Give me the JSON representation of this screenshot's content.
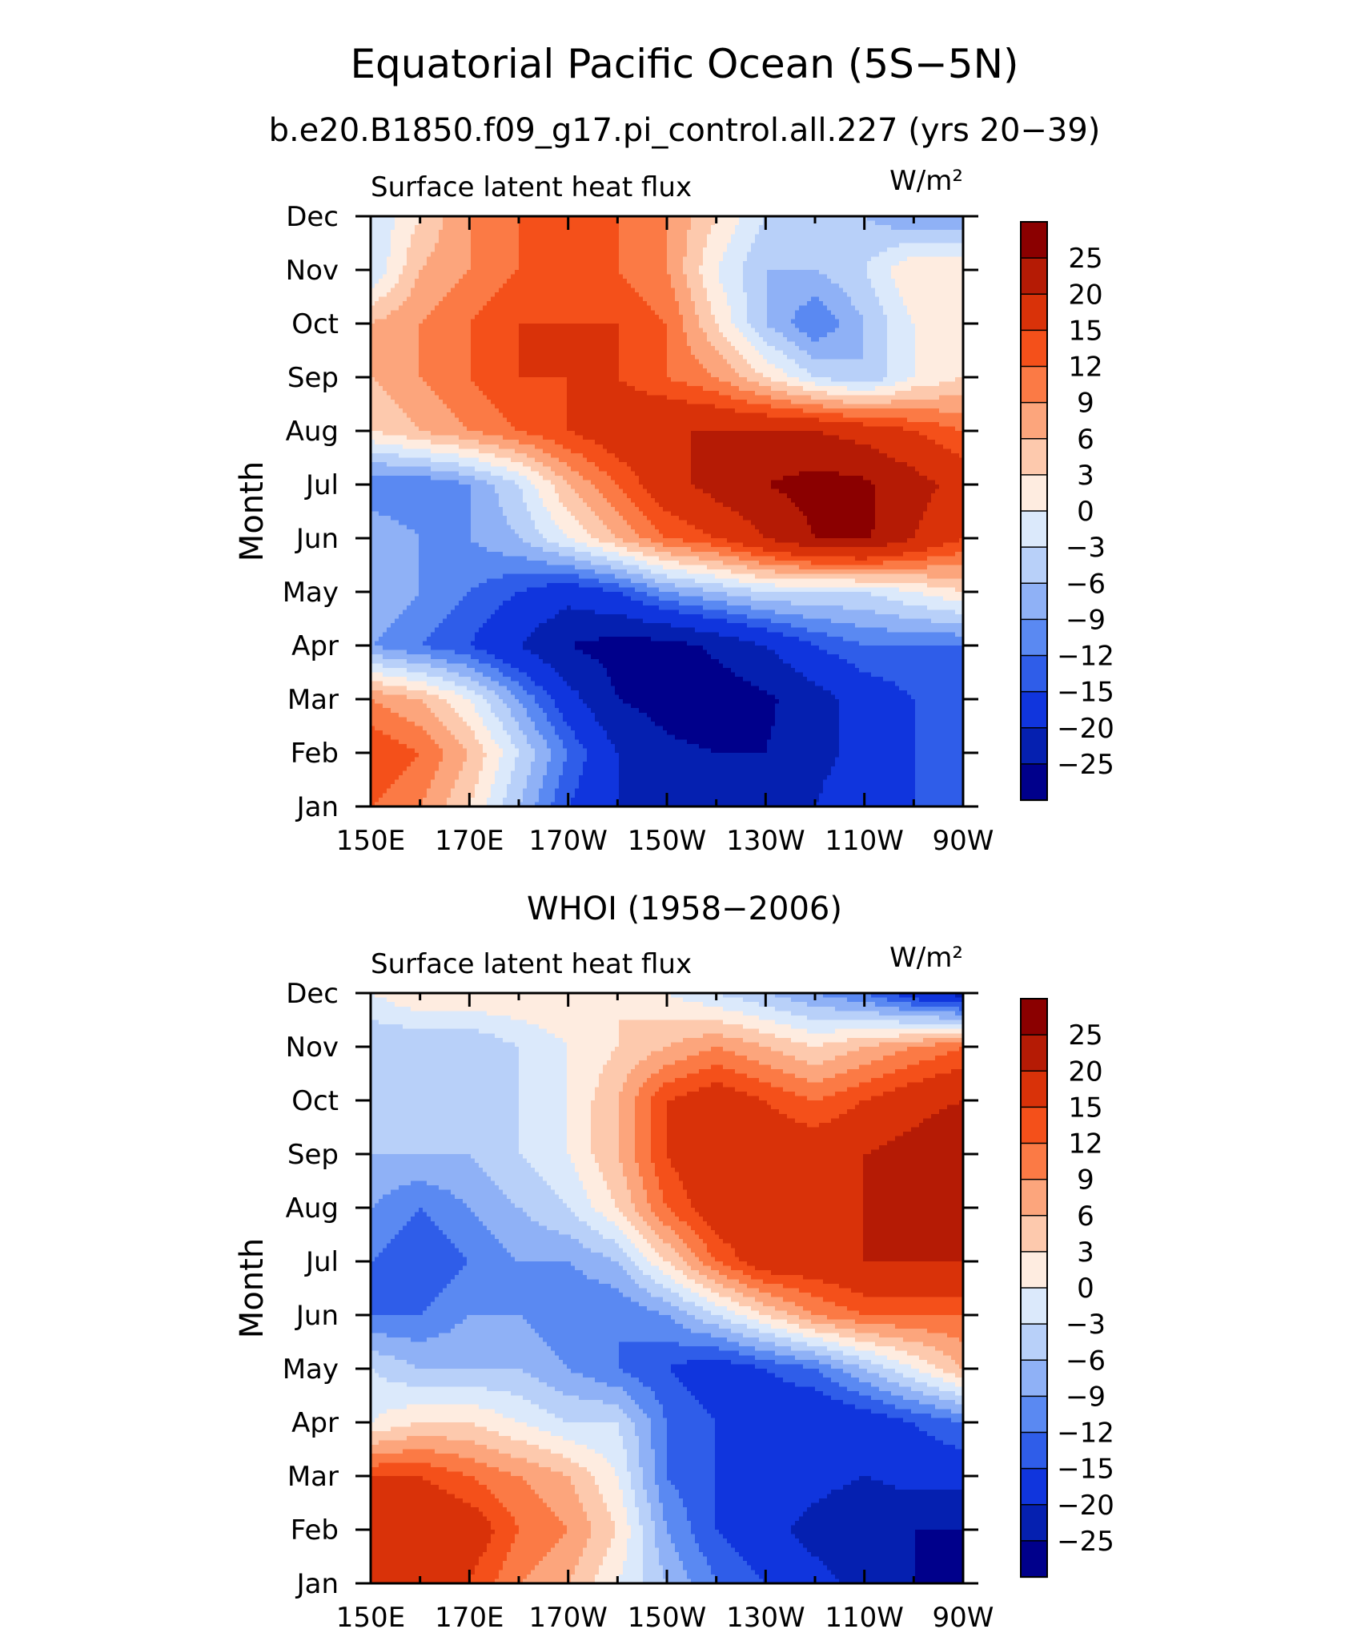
{
  "figure": {
    "title": "Equatorial Pacific Ocean (5S−5N)",
    "subtitle": "b.e20.B1850.f09_g17.pi_control.all.227 (yrs 20−39)",
    "panel2_title": "WHOI (1958−2006)"
  },
  "colorbar": {
    "labels": [
      "25",
      "20",
      "15",
      "12",
      "9",
      "6",
      "3",
      "0",
      "−3",
      "−6",
      "−9",
      "−12",
      "−15",
      "−20",
      "−25"
    ],
    "colors": [
      "#8b0000",
      "#b51b05",
      "#d93209",
      "#f4501a",
      "#fb7a45",
      "#fca57c",
      "#fdc9ad",
      "#feece0",
      "#dbe9fb",
      "#b8d0f9",
      "#8fb1f6",
      "#5a89f2",
      "#2f5de9",
      "#1035dd",
      "#0520b0",
      "#00008b"
    ]
  },
  "chart_data": [
    {
      "type": "heatmap",
      "title": "Surface latent heat flux",
      "units_label": "W/m²",
      "ylabel": "Month",
      "x_tick_labels": [
        "150E",
        "170E",
        "170W",
        "150W",
        "130W",
        "110W",
        "90W"
      ],
      "y_tick_labels": [
        "Jan",
        "Feb",
        "Mar",
        "Apr",
        "May",
        "Jun",
        "Jul",
        "Aug",
        "Sep",
        "Oct",
        "Nov",
        "Dec"
      ],
      "x_lon": [
        150,
        160,
        170,
        180,
        190,
        200,
        210,
        220,
        230,
        240,
        250,
        260,
        270
      ],
      "values": [
        [
          12,
          9,
          3,
          -6,
          -15,
          -20,
          -22,
          -22,
          -22,
          -20,
          -15,
          -15,
          -15
        ],
        [
          15,
          12,
          6,
          -3,
          -12,
          -20,
          -24,
          -25,
          -25,
          -22,
          -18,
          -15,
          -15
        ],
        [
          9,
          6,
          0,
          -9,
          -18,
          -25,
          -27,
          -28,
          -26,
          -22,
          -18,
          -15,
          -15
        ],
        [
          -9,
          -12,
          -15,
          -20,
          -25,
          -27,
          -27,
          -24,
          -20,
          -15,
          -12,
          -12,
          -12
        ],
        [
          -6,
          -9,
          -12,
          -15,
          -18,
          -15,
          -9,
          -6,
          -3,
          -3,
          -3,
          0,
          3
        ],
        [
          -6,
          -9,
          -9,
          -6,
          0,
          6,
          12,
          15,
          20,
          25,
          26,
          20,
          15
        ],
        [
          -12,
          -12,
          -9,
          -3,
          6,
          12,
          18,
          22,
          25,
          27,
          26,
          22,
          18
        ],
        [
          3,
          6,
          9,
          12,
          15,
          18,
          20,
          20,
          20,
          20,
          18,
          15,
          12
        ],
        [
          6,
          9,
          12,
          15,
          15,
          15,
          12,
          9,
          3,
          -3,
          -6,
          0,
          3
        ],
        [
          6,
          9,
          12,
          15,
          15,
          15,
          12,
          3,
          -6,
          -12,
          -6,
          0,
          3
        ],
        [
          -3,
          6,
          9,
          12,
          15,
          12,
          9,
          0,
          -6,
          -6,
          -3,
          3,
          3
        ],
        [
          -3,
          3,
          9,
          12,
          12,
          12,
          9,
          3,
          -3,
          -6,
          -6,
          -9,
          -9
        ]
      ]
    },
    {
      "type": "heatmap",
      "title": "Surface latent heat flux",
      "units_label": "W/m²",
      "ylabel": "Month",
      "x_tick_labels": [
        "150E",
        "170E",
        "170W",
        "150W",
        "130W",
        "110W",
        "90W"
      ],
      "y_tick_labels": [
        "Jan",
        "Feb",
        "Mar",
        "Apr",
        "May",
        "Jun",
        "Jul",
        "Aug",
        "Sep",
        "Oct",
        "Nov",
        "Dec"
      ],
      "x_lon": [
        150,
        160,
        170,
        180,
        190,
        200,
        210,
        220,
        230,
        240,
        250,
        260,
        270
      ],
      "values": [
        [
          15,
          18,
          15,
          9,
          6,
          0,
          -6,
          -12,
          -15,
          -18,
          -22,
          -25,
          -27
        ],
        [
          18,
          20,
          18,
          12,
          9,
          3,
          -9,
          -15,
          -18,
          -22,
          -25,
          -25,
          -25
        ],
        [
          15,
          15,
          12,
          9,
          6,
          0,
          -12,
          -15,
          -15,
          -18,
          -20,
          -18,
          -18
        ],
        [
          0,
          3,
          3,
          0,
          -3,
          -3,
          -12,
          -15,
          -18,
          -20,
          -18,
          -15,
          -12
        ],
        [
          -3,
          -6,
          -6,
          -6,
          -9,
          -12,
          -15,
          -18,
          -15,
          -12,
          -6,
          0,
          6
        ],
        [
          -12,
          -12,
          -9,
          -9,
          -12,
          -12,
          -9,
          -3,
          3,
          9,
          12,
          12,
          12
        ],
        [
          -12,
          -15,
          -12,
          -9,
          -9,
          -6,
          3,
          12,
          18,
          18,
          20,
          20,
          20
        ],
        [
          -9,
          -12,
          -9,
          -6,
          -3,
          3,
          12,
          18,
          20,
          20,
          20,
          20,
          22
        ],
        [
          -6,
          -6,
          -6,
          -3,
          0,
          6,
          15,
          20,
          18,
          18,
          20,
          22,
          25
        ],
        [
          -3,
          -3,
          -6,
          -3,
          0,
          6,
          15,
          18,
          15,
          12,
          15,
          18,
          20
        ],
        [
          -6,
          -6,
          -6,
          -3,
          0,
          3,
          6,
          9,
          6,
          3,
          6,
          9,
          12
        ],
        [
          0,
          3,
          3,
          3,
          3,
          3,
          0,
          -3,
          -6,
          -9,
          -12,
          -18,
          -22
        ]
      ]
    }
  ]
}
